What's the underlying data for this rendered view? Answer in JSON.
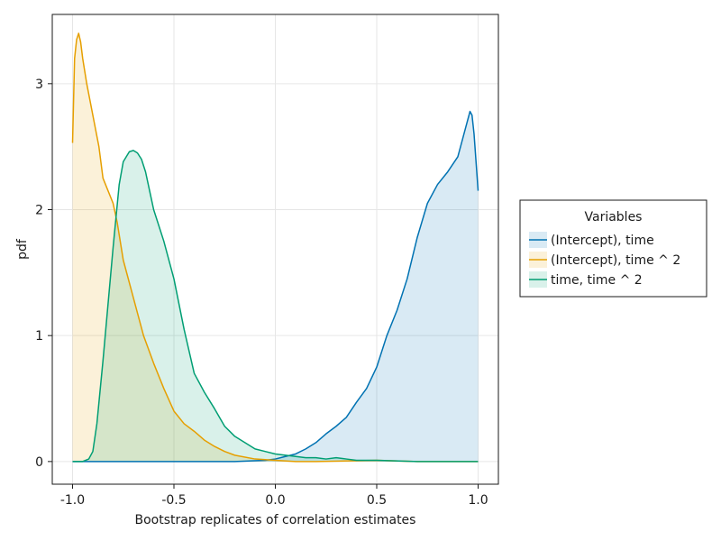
{
  "chart_data": {
    "type": "area",
    "title": "",
    "xlabel": "Bootstrap replicates of correlation estimates",
    "ylabel": "pdf",
    "xlim": [
      -1.1,
      1.1
    ],
    "ylim": [
      -0.18,
      3.55
    ],
    "x_ticks": [
      -1.0,
      -0.5,
      0.0,
      0.5,
      1.0
    ],
    "x_tick_labels": [
      "-1.0",
      "-0.5",
      "0.0",
      "0.5",
      "1.0"
    ],
    "y_ticks": [
      0,
      1,
      2,
      3
    ],
    "y_tick_labels": [
      "0",
      "1",
      "2",
      "3"
    ],
    "grid": true,
    "legend": {
      "title": "Variables",
      "placement": "right",
      "entries": [
        "(Intercept), time",
        "(Intercept), time ^ 2",
        "time, time ^ 2"
      ]
    },
    "series": [
      {
        "name": "(Intercept), time",
        "color": "#0072b2",
        "x": [
          -1.0,
          -0.5,
          -0.2,
          -0.05,
          0.0,
          0.05,
          0.1,
          0.15,
          0.2,
          0.25,
          0.3,
          0.35,
          0.4,
          0.45,
          0.5,
          0.55,
          0.6,
          0.65,
          0.7,
          0.75,
          0.8,
          0.85,
          0.9,
          0.93,
          0.96,
          0.97,
          0.98,
          1.0
        ],
        "y": [
          0.0,
          0.0,
          0.0,
          0.01,
          0.02,
          0.04,
          0.06,
          0.1,
          0.15,
          0.22,
          0.28,
          0.35,
          0.47,
          0.58,
          0.75,
          1.0,
          1.2,
          1.45,
          1.78,
          2.05,
          2.2,
          2.3,
          2.42,
          2.6,
          2.78,
          2.75,
          2.6,
          2.15
        ]
      },
      {
        "name": "(Intercept), time ^ 2",
        "color": "#e69f00",
        "x": [
          -1.0,
          -0.99,
          -0.98,
          -0.97,
          -0.96,
          -0.95,
          -0.93,
          -0.9,
          -0.87,
          -0.85,
          -0.8,
          -0.78,
          -0.75,
          -0.7,
          -0.65,
          -0.6,
          -0.55,
          -0.5,
          -0.45,
          -0.4,
          -0.35,
          -0.3,
          -0.25,
          -0.2,
          -0.1,
          0.0,
          0.1,
          0.2,
          0.5,
          0.7,
          1.0
        ],
        "y": [
          2.53,
          3.2,
          3.35,
          3.4,
          3.33,
          3.2,
          3.0,
          2.75,
          2.5,
          2.25,
          2.05,
          1.9,
          1.6,
          1.3,
          1.0,
          0.78,
          0.58,
          0.4,
          0.3,
          0.24,
          0.17,
          0.12,
          0.08,
          0.05,
          0.02,
          0.01,
          0.0,
          0.0,
          0.01,
          0.0,
          0.0
        ]
      },
      {
        "name": "time, time ^ 2",
        "color": "#009e73",
        "x": [
          -1.0,
          -0.95,
          -0.92,
          -0.9,
          -0.88,
          -0.85,
          -0.8,
          -0.77,
          -0.75,
          -0.72,
          -0.7,
          -0.68,
          -0.66,
          -0.64,
          -0.62,
          -0.6,
          -0.55,
          -0.5,
          -0.45,
          -0.4,
          -0.35,
          -0.3,
          -0.25,
          -0.2,
          -0.15,
          -0.1,
          -0.05,
          0.0,
          0.05,
          0.1,
          0.15,
          0.2,
          0.25,
          0.3,
          0.35,
          0.4,
          0.5,
          0.7,
          1.0
        ],
        "y": [
          0.0,
          0.0,
          0.02,
          0.08,
          0.3,
          0.8,
          1.7,
          2.2,
          2.38,
          2.46,
          2.47,
          2.45,
          2.4,
          2.3,
          2.15,
          2.0,
          1.75,
          1.45,
          1.05,
          0.7,
          0.55,
          0.42,
          0.28,
          0.2,
          0.15,
          0.1,
          0.08,
          0.06,
          0.05,
          0.04,
          0.03,
          0.03,
          0.02,
          0.03,
          0.02,
          0.01,
          0.01,
          0.0,
          0.0
        ]
      }
    ]
  }
}
